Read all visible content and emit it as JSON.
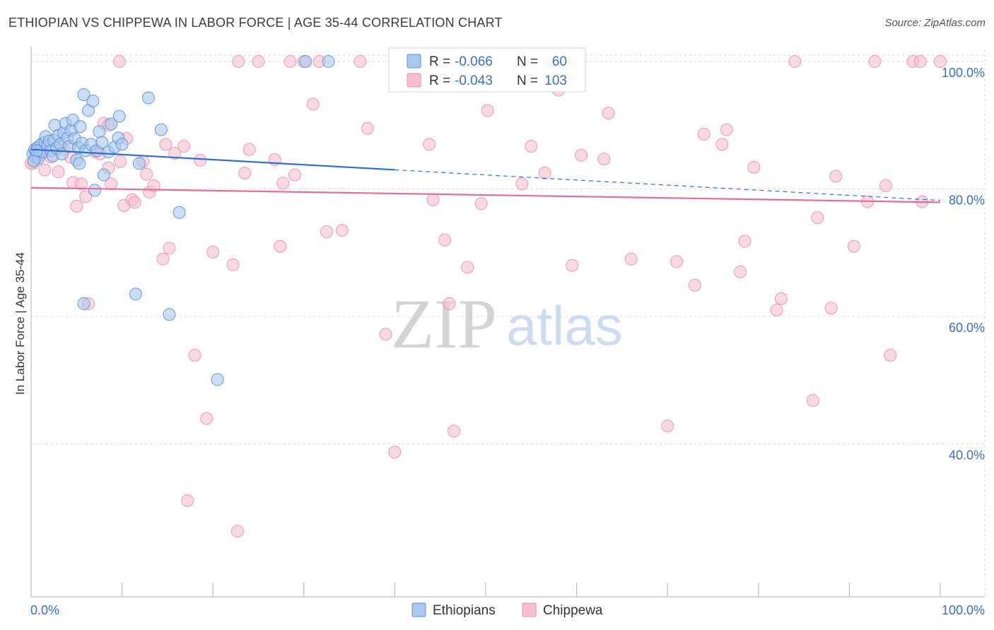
{
  "header": {
    "title": "ETHIOPIAN VS CHIPPEWA IN LABOR FORCE | AGE 35-44 CORRELATION CHART",
    "source": "Source: ZipAtlas.com"
  },
  "watermark": {
    "zip": "ZIP",
    "atlas": "atlas"
  },
  "colors": {
    "ethiopian_fill": "#a9c8ef",
    "ethiopian_stroke": "#5b8fd6",
    "ethiopian_line": "#2f6fcf",
    "chippewa_fill": "#f6bfd0",
    "chippewa_stroke": "#e890ad",
    "chippewa_line": "#e56d97",
    "axis_label_blue": "#3b6fc4",
    "grid": "#d8d8d8"
  },
  "legend": {
    "rows": [
      {
        "r_label": "R =",
        "r_value": "-0.066",
        "n_label": "N =",
        "n_value": "60"
      },
      {
        "r_label": "R =",
        "r_value": "-0.043",
        "n_label": "N =",
        "n_value": "103"
      }
    ]
  },
  "chart_data": {
    "type": "scatter",
    "title": "ETHIOPIAN VS CHIPPEWA IN LABOR FORCE | AGE 35-44 CORRELATION CHART",
    "xlabel": "",
    "ylabel": "In Labor Force | Age 35-44",
    "xlim": [
      0,
      100
    ],
    "ylim": [
      16,
      103
    ],
    "x_tick_labels": [
      "0.0%",
      "100.0%"
    ],
    "y_tick_labels": [
      "40.0%",
      "60.0%",
      "80.0%",
      "100.0%"
    ],
    "y_ticks": [
      40,
      60,
      80,
      100
    ],
    "grid": true,
    "legend_position": "top-center",
    "series": [
      {
        "name": "Ethiopians",
        "r": -0.066,
        "n": 60,
        "trend": {
          "x0": 0,
          "y0": 86.2,
          "x1": 40,
          "y1": 83.0,
          "dash_to_x": 100,
          "dash_to_y": 78.2
        },
        "points": [
          [
            0.2,
            85.5
          ],
          [
            0.4,
            86.2
          ],
          [
            0.5,
            85.0
          ],
          [
            0.7,
            86.5
          ],
          [
            0.8,
            84.8
          ],
          [
            1.0,
            86.0
          ],
          [
            1.1,
            87.0
          ],
          [
            1.3,
            85.8
          ],
          [
            1.5,
            87.3
          ],
          [
            1.6,
            88.2
          ],
          [
            1.8,
            86.8
          ],
          [
            2.0,
            87.5
          ],
          [
            2.2,
            86.0
          ],
          [
            2.4,
            85.2
          ],
          [
            2.5,
            87.6
          ],
          [
            2.6,
            90.0
          ],
          [
            2.8,
            86.4
          ],
          [
            3.0,
            88.4
          ],
          [
            3.2,
            87.0
          ],
          [
            3.4,
            85.5
          ],
          [
            3.6,
            88.8
          ],
          [
            3.8,
            90.3
          ],
          [
            4.0,
            88.0
          ],
          [
            4.2,
            86.7
          ],
          [
            4.4,
            89.2
          ],
          [
            4.6,
            90.8
          ],
          [
            4.8,
            87.9
          ],
          [
            5.0,
            84.5
          ],
          [
            5.2,
            86.5
          ],
          [
            5.4,
            89.8
          ],
          [
            5.6,
            87.2
          ],
          [
            6.0,
            86.0
          ],
          [
            6.3,
            92.3
          ],
          [
            6.6,
            87.0
          ],
          [
            6.8,
            93.8
          ],
          [
            7.2,
            86.0
          ],
          [
            7.5,
            89.0
          ],
          [
            7.8,
            87.3
          ],
          [
            8.0,
            82.2
          ],
          [
            8.5,
            85.8
          ],
          [
            8.8,
            90.2
          ],
          [
            9.2,
            86.6
          ],
          [
            9.6,
            88.0
          ],
          [
            10.0,
            87.0
          ],
          [
            9.7,
            91.4
          ],
          [
            5.8,
            94.8
          ],
          [
            5.3,
            84.0
          ],
          [
            7.0,
            79.8
          ],
          [
            11.9,
            84.0
          ],
          [
            14.3,
            89.3
          ],
          [
            12.9,
            94.3
          ],
          [
            16.3,
            76.3
          ],
          [
            11.5,
            63.5
          ],
          [
            5.8,
            62.0
          ],
          [
            15.2,
            60.3
          ],
          [
            20.5,
            50.1
          ],
          [
            30.2,
            100.0
          ],
          [
            32.7,
            100.0
          ],
          [
            0.3,
            84.4
          ],
          [
            0.6,
            86.0
          ]
        ]
      },
      {
        "name": "Chippewa",
        "r": -0.043,
        "n": 103,
        "trend": {
          "x0": 0,
          "y0": 80.2,
          "x1": 100,
          "y1": 77.9
        },
        "points": [
          [
            0.2,
            84.0
          ],
          [
            0.5,
            86.0
          ],
          [
            1.0,
            85.3
          ],
          [
            1.5,
            83.0
          ],
          [
            2.2,
            85.0
          ],
          [
            3.0,
            82.7
          ],
          [
            3.6,
            86.2
          ],
          [
            4.3,
            85.0
          ],
          [
            4.6,
            81.0
          ],
          [
            5.0,
            77.3
          ],
          [
            5.5,
            80.8
          ],
          [
            6.0,
            78.8
          ],
          [
            6.3,
            62.0
          ],
          [
            7.0,
            85.8
          ],
          [
            7.6,
            85.5
          ],
          [
            8.0,
            90.3
          ],
          [
            8.5,
            90.0
          ],
          [
            8.5,
            83.3
          ],
          [
            8.8,
            80.8
          ],
          [
            9.8,
            84.3
          ],
          [
            10.2,
            77.4
          ],
          [
            10.5,
            87.9
          ],
          [
            11.1,
            78.3
          ],
          [
            11.4,
            77.9
          ],
          [
            12.3,
            84.3
          ],
          [
            12.7,
            82.3
          ],
          [
            13.0,
            79.5
          ],
          [
            13.5,
            80.5
          ],
          [
            14.5,
            69.0
          ],
          [
            14.8,
            87.0
          ],
          [
            15.2,
            70.7
          ],
          [
            15.8,
            85.6
          ],
          [
            16.8,
            86.7
          ],
          [
            17.2,
            31.1
          ],
          [
            18.0,
            53.9
          ],
          [
            18.6,
            84.5
          ],
          [
            19.3,
            44.0
          ],
          [
            20.0,
            70.1
          ],
          [
            22.2,
            68.1
          ],
          [
            22.7,
            26.3
          ],
          [
            23.5,
            82.5
          ],
          [
            24.0,
            86.2
          ],
          [
            26.8,
            84.6
          ],
          [
            27.4,
            71.0
          ],
          [
            27.7,
            80.9
          ],
          [
            29.0,
            82.2
          ],
          [
            30.0,
            100.0
          ],
          [
            31.0,
            93.3
          ],
          [
            32.5,
            73.3
          ],
          [
            34.2,
            73.5
          ],
          [
            37.0,
            89.5
          ],
          [
            39.0,
            57.2
          ],
          [
            40.0,
            38.7
          ],
          [
            43.8,
            87.0
          ],
          [
            44.2,
            78.3
          ],
          [
            45.5,
            72.0
          ],
          [
            46.0,
            62.0
          ],
          [
            46.5,
            42.0
          ],
          [
            47.0,
            97.0
          ],
          [
            48.0,
            67.7
          ],
          [
            49.5,
            77.7
          ],
          [
            50.2,
            92.3
          ],
          [
            54.0,
            80.8
          ],
          [
            55.0,
            86.7
          ],
          [
            56.5,
            82.5
          ],
          [
            57.0,
            97.0
          ],
          [
            58.0,
            95.5
          ],
          [
            59.5,
            68.0
          ],
          [
            60.5,
            85.3
          ],
          [
            63.0,
            84.7
          ],
          [
            63.5,
            91.9
          ],
          [
            66.0,
            69.0
          ],
          [
            70.0,
            42.8
          ],
          [
            71.0,
            68.6
          ],
          [
            73.0,
            64.9
          ],
          [
            74.0,
            88.6
          ],
          [
            76.0,
            87.0
          ],
          [
            76.5,
            89.3
          ],
          [
            78.0,
            67.0
          ],
          [
            78.5,
            71.8
          ],
          [
            79.5,
            83.4
          ],
          [
            82.0,
            61.0
          ],
          [
            82.5,
            62.8
          ],
          [
            84.0,
            100.0
          ],
          [
            86.0,
            46.8
          ],
          [
            86.5,
            75.5
          ],
          [
            88.0,
            61.3
          ],
          [
            88.5,
            82.0
          ],
          [
            90.5,
            71.0
          ],
          [
            92.0,
            78.0
          ],
          [
            94.0,
            80.5
          ],
          [
            94.5,
            53.9
          ],
          [
            98.0,
            78.0
          ],
          [
            22.8,
            100.0
          ],
          [
            25.0,
            100.0
          ],
          [
            28.5,
            100.0
          ],
          [
            31.7,
            100.0
          ],
          [
            36.2,
            100.0
          ],
          [
            9.7,
            100.0
          ],
          [
            92.8,
            100.0
          ],
          [
            97.0,
            100.0
          ],
          [
            97.8,
            100.0
          ],
          [
            100.0,
            100.0
          ],
          [
            0.0,
            84.0
          ]
        ]
      }
    ]
  }
}
